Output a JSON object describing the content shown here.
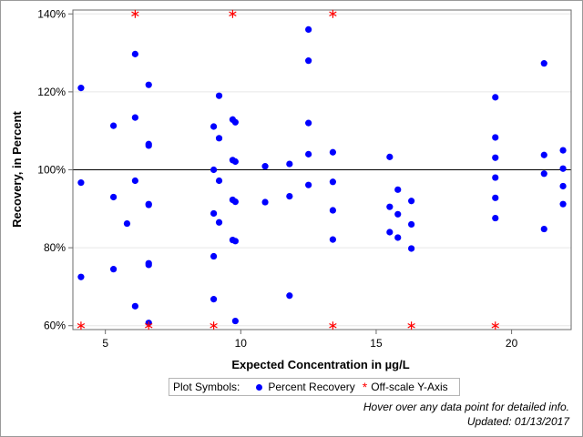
{
  "chart_data": {
    "type": "scatter",
    "xlabel": "Expected Concentration in µg/L",
    "ylabel": "Recovery, in Percent",
    "xlim": [
      3.8,
      22.2
    ],
    "ylim": [
      59,
      141
    ],
    "x_ticks": [
      5,
      10,
      15,
      20
    ],
    "y_ticks": [
      60,
      80,
      100,
      120,
      140
    ],
    "y_tick_labels": [
      "60%",
      "80%",
      "100%",
      "120%",
      "140%"
    ],
    "reference_line_y": 100,
    "grid": true,
    "series": [
      {
        "name": "Percent Recovery",
        "color": "#0000ff",
        "marker": "circle",
        "points": [
          [
            4.1,
            121
          ],
          [
            4.1,
            96.7
          ],
          [
            4.1,
            72.5
          ],
          [
            5.3,
            111.3
          ],
          [
            5.3,
            93
          ],
          [
            5.3,
            74.5
          ],
          [
            5.8,
            86.2
          ],
          [
            6.1,
            129.7
          ],
          [
            6.1,
            113.4
          ],
          [
            6.1,
            97.2
          ],
          [
            6.1,
            65
          ],
          [
            6.6,
            121.8
          ],
          [
            6.6,
            106.6
          ],
          [
            6.6,
            106.2
          ],
          [
            6.6,
            91.2
          ],
          [
            6.6,
            91
          ],
          [
            6.6,
            76
          ],
          [
            6.6,
            75.6
          ],
          [
            6.6,
            60.7
          ],
          [
            9,
            111.1
          ],
          [
            9,
            100
          ],
          [
            9,
            88.8
          ],
          [
            9,
            77.8
          ],
          [
            9,
            66.8
          ],
          [
            9.2,
            119
          ],
          [
            9.2,
            108.1
          ],
          [
            9.2,
            97.2
          ],
          [
            9.2,
            86.5
          ],
          [
            9.7,
            112.9
          ],
          [
            9.7,
            102.5
          ],
          [
            9.7,
            92.3
          ],
          [
            9.7,
            82
          ],
          [
            9.8,
            112.2
          ],
          [
            9.8,
            102.1
          ],
          [
            9.8,
            91.8
          ],
          [
            9.8,
            81.7
          ],
          [
            9.8,
            61.2
          ],
          [
            10.9,
            100.9
          ],
          [
            10.9,
            91.7
          ],
          [
            11.8,
            101.5
          ],
          [
            11.8,
            93.2
          ],
          [
            11.8,
            67.7
          ],
          [
            12.5,
            136
          ],
          [
            12.5,
            128
          ],
          [
            12.5,
            112
          ],
          [
            12.5,
            104
          ],
          [
            12.5,
            96.1
          ],
          [
            13.4,
            104.5
          ],
          [
            13.4,
            96.9
          ],
          [
            13.4,
            89.6
          ],
          [
            13.4,
            82.1
          ],
          [
            15.5,
            103.3
          ],
          [
            15.5,
            90.5
          ],
          [
            15.5,
            84
          ],
          [
            15.8,
            94.9
          ],
          [
            15.8,
            88.6
          ],
          [
            15.8,
            82.6
          ],
          [
            16.3,
            92
          ],
          [
            16.3,
            86
          ],
          [
            16.3,
            79.8
          ],
          [
            19.4,
            118.6
          ],
          [
            19.4,
            108.3
          ],
          [
            19.4,
            103.1
          ],
          [
            19.4,
            98
          ],
          [
            19.4,
            92.8
          ],
          [
            19.4,
            87.6
          ],
          [
            21.2,
            127.3
          ],
          [
            21.2,
            103.8
          ],
          [
            21.2,
            99
          ],
          [
            21.2,
            84.8
          ],
          [
            21.9,
            105
          ],
          [
            21.9,
            100.3
          ],
          [
            21.9,
            95.8
          ],
          [
            21.9,
            91.2
          ]
        ]
      },
      {
        "name": "Off-scale Y-Axis",
        "color": "#ff0000",
        "marker": "star",
        "points": [
          [
            6.1,
            140
          ],
          [
            9.7,
            140
          ],
          [
            13.4,
            140
          ],
          [
            4.1,
            60
          ],
          [
            6.6,
            60
          ],
          [
            9,
            60
          ],
          [
            13.4,
            60
          ],
          [
            16.3,
            60
          ],
          [
            19.4,
            60
          ]
        ]
      }
    ]
  },
  "legend": {
    "title": "Plot Symbols:",
    "items": [
      {
        "label": "Percent Recovery",
        "symbol": "circle",
        "color": "#0000ff"
      },
      {
        "label": "Off-scale Y-Axis",
        "symbol": "*",
        "color": "#ff0000"
      }
    ]
  },
  "footnotes": {
    "hover": "Hover over any data point for detailed info.",
    "updated": "Updated: 01/13/2017"
  }
}
